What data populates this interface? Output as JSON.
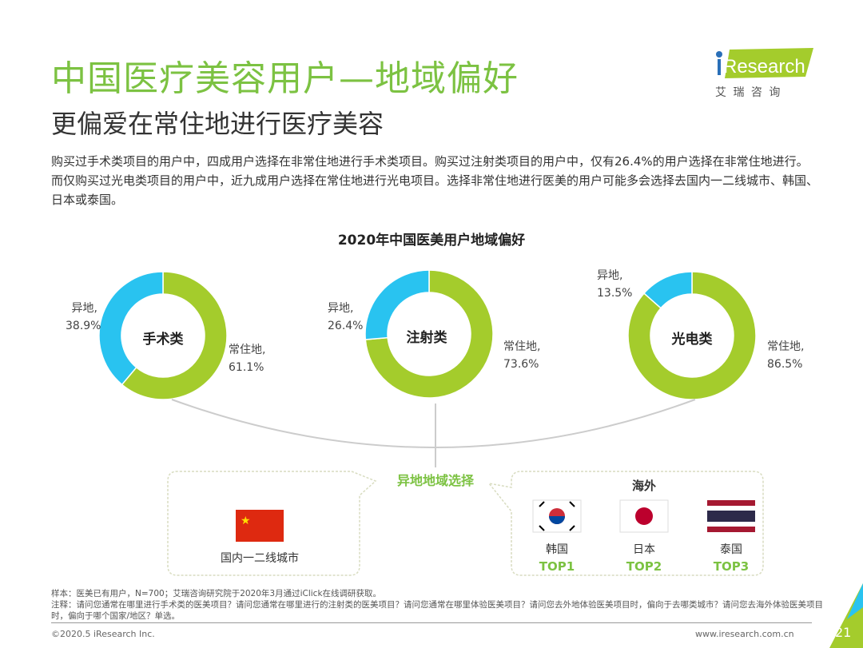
{
  "title": "中国医疗美容用户—地域偏好",
  "subtitle": "更偏爱在常住地进行医疗美容",
  "description": "购买过手术类项目的用户中，四成用户选择在非常住地进行手术类项目。购买过注射类项目的用户中，仅有26.4%的用户选择在非常住地进行。而仅购买过光电类项目的用户中，近九成用户选择在常住地进行光电项目。选择非常住地进行医美的用户可能多会选择去国内一二线城市、韩国、日本或泰国。",
  "logo": {
    "text": "iResearch",
    "sub": "艾 瑞 咨 询"
  },
  "colors": {
    "title": "#7cc242",
    "resident": "#a4cc2c",
    "nonresident": "#29c3f0"
  },
  "chart_data": {
    "type": "pie",
    "title": "2020年中国医美用户地域偏好",
    "charts": [
      {
        "name": "手术类",
        "slices": [
          {
            "label": "常住地,",
            "value": 61.1,
            "text": "61.1%"
          },
          {
            "label": "异地,",
            "value": 38.9,
            "text": "38.9%"
          }
        ]
      },
      {
        "name": "注射类",
        "slices": [
          {
            "label": "常住地,",
            "value": 73.6,
            "text": "73.6%"
          },
          {
            "label": "异地,",
            "value": 26.4,
            "text": "26.4%"
          }
        ]
      },
      {
        "name": "光电类",
        "slices": [
          {
            "label": "常住地,",
            "value": 86.5,
            "text": "86.5%"
          },
          {
            "label": "异地,",
            "value": 13.5,
            "text": "13.5%"
          }
        ]
      }
    ]
  },
  "selection": {
    "title": "异地地域选择",
    "domestic": "国内一二线城市",
    "overseas_title": "海外",
    "countries": [
      {
        "name": "韩国",
        "rank": "TOP1",
        "flag": "korea-flag"
      },
      {
        "name": "日本",
        "rank": "TOP2",
        "flag": "japan-flag"
      },
      {
        "name": "泰国",
        "rank": "TOP3",
        "flag": "thailand-flag"
      }
    ]
  },
  "footer": {
    "sample": "样本：医美已有用户，N=700；艾瑞咨询研究院于2020年3月通过iClick在线调研获取。",
    "note": "注释：请问您通常在哪里进行手术类的医美项目？请问您通常在哪里进行的注射类的医美项目？请问您通常在哪里体验医美项目？请问您去外地体验医美项目时，偏向于去哪类城市？请问您去海外体验医美项目时，偏向于哪个国家/地区？单选。",
    "copyright": "©2020.5 iResearch Inc.",
    "url": "www.iresearch.com.cn",
    "page": "21"
  }
}
